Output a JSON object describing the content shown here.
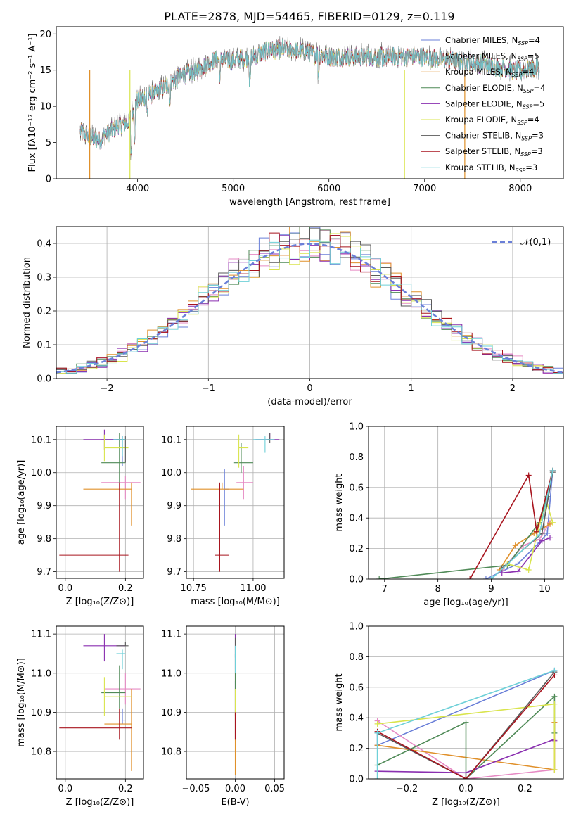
{
  "title": "PLATE=2878, MJD=54465, FIBERID=0129, z=0.119",
  "colors": [
    "#6a7fd8",
    "#e68ac4",
    "#e0902a",
    "#4f8a57",
    "#8a2fb0",
    "#d9e44d",
    "#5a5a5a",
    "#a8141e",
    "#6ed0d8"
  ],
  "chart_data": [
    {
      "id": "spectrum",
      "type": "line",
      "xlabel": "wavelength [Angstrom, rest frame]",
      "ylabel": "Flux [fλ10⁻¹⁷ erg cm⁻² s⁻¹ A⁻¹]",
      "xlim": [
        3150,
        8450
      ],
      "ylim": [
        0,
        21
      ],
      "xticks": [
        4000,
        5000,
        6000,
        7000,
        8000
      ],
      "yticks": [
        0,
        5,
        10,
        15,
        20
      ],
      "grid": false,
      "legend": "top-right",
      "series": [
        {
          "name": "Chabrier MILES, N_SSP=4"
        },
        {
          "name": "Salpeter MILES, N_SSP=5"
        },
        {
          "name": "Kroupa MILES, N_SSP=4"
        },
        {
          "name": "Chabrier ELODIE, N_SSP=4"
        },
        {
          "name": "Salpeter ELODIE, N_SSP=5"
        },
        {
          "name": "Kroupa ELODIE, N_SSP=4"
        },
        {
          "name": "Chabrier STELIB, N_SSP=3"
        },
        {
          "name": "Salpeter STELIB, N_SSP=3"
        },
        {
          "name": "Kroupa STELIB, N_SSP=3"
        }
      ],
      "continuum": {
        "x": [
          3400,
          3500,
          3600,
          3700,
          3800,
          3900,
          4000,
          4100,
          4200,
          4300,
          4400,
          4600,
          4800,
          5000,
          5200,
          5400,
          5600,
          5800,
          6000,
          6200,
          6400,
          6600,
          6800,
          7000,
          7200,
          7400,
          7600,
          7800,
          8000,
          8200
        ],
        "y": [
          6.5,
          5.8,
          5.5,
          6.5,
          7.5,
          8.0,
          11.0,
          11.5,
          12.0,
          13.0,
          14.0,
          15.0,
          16.5,
          16.5,
          17.0,
          18.0,
          18.0,
          17.5,
          17.0,
          17.0,
          17.0,
          17.0,
          17.0,
          17.0,
          16.5,
          16.3,
          16.0,
          15.5,
          15.0,
          15.5
        ]
      }
    },
    {
      "id": "residuals",
      "type": "bar",
      "xlabel": "(data-model)/error",
      "ylabel": "Normed distribution",
      "xlim": [
        -2.5,
        2.5
      ],
      "ylim": [
        0,
        0.45
      ],
      "xticks": [
        -2,
        -1,
        0,
        1,
        2
      ],
      "yticks": [
        0.0,
        0.1,
        0.2,
        0.3,
        0.4
      ],
      "grid": true,
      "legend": "top-right",
      "reference": {
        "name": "𝒩(0,1)",
        "mean": 0,
        "sigma": 1
      },
      "bins": 50
    },
    {
      "id": "age-vs-Z",
      "type": "scatter",
      "xlabel": "Z [log₁₀(Z/Z⊙)]",
      "ylabel": "age  [log₁₀(age/yr)]",
      "xlim": [
        -0.03,
        0.26
      ],
      "ylim": [
        9.68,
        10.14
      ],
      "xticks": [
        0.0,
        0.2
      ],
      "yticks": [
        9.7,
        9.8,
        9.9,
        10.0,
        10.1
      ],
      "grid": true,
      "points": [
        {
          "x": 0.19,
          "xerr": [
            0.07,
            0.01
          ],
          "y": 10.1,
          "yerr": [
            0.08,
            0.01
          ]
        },
        {
          "x": 0.2,
          "xerr": [
            0.08,
            0.05
          ],
          "y": 9.97,
          "yerr": [
            0.05,
            0.02
          ]
        },
        {
          "x": 0.22,
          "xerr": [
            0.16,
            0.0
          ],
          "y": 9.95,
          "yerr": [
            0.11,
            0.02
          ]
        },
        {
          "x": 0.18,
          "xerr": [
            0.06,
            0.02
          ],
          "y": 10.03,
          "yerr": [
            0.06,
            0.09
          ]
        },
        {
          "x": 0.13,
          "xerr": [
            0.07,
            0.06
          ],
          "y": 10.1,
          "yerr": [
            0.03,
            0.03
          ]
        },
        {
          "x": 0.13,
          "xerr": [
            0.0,
            0.08
          ],
          "y": 10.075,
          "yerr": [
            0.04,
            0.04
          ]
        },
        {
          "x": 0.2,
          "xerr": [
            0.03,
            0.0
          ],
          "y": 10.1,
          "yerr": [
            0.07,
            0.01
          ]
        },
        {
          "x": 0.18,
          "xerr": [
            0.2,
            0.03
          ],
          "y": 9.75,
          "yerr": [
            0.05,
            0.22
          ]
        },
        {
          "x": 0.19,
          "xerr": [
            0.03,
            0.01
          ],
          "y": 10.1,
          "yerr": [
            0.05,
            0.01
          ]
        }
      ]
    },
    {
      "id": "age-vs-mass",
      "type": "scatter",
      "xlabel": "mass [log₁₀(M/M⊙)]",
      "ylabel": "",
      "xlim": [
        10.72,
        11.13
      ],
      "ylim": [
        9.68,
        10.14
      ],
      "xticks": [
        10.75,
        11.0
      ],
      "yticks": [
        9.7,
        9.8,
        9.9,
        10.0,
        10.1
      ],
      "grid": true,
      "points": [
        {
          "x": 10.88,
          "xerr": [
            0.0,
            0.02
          ],
          "y": 9.95,
          "yerr": [
            0.11,
            0.06
          ]
        },
        {
          "x": 10.96,
          "xerr": [
            0.03,
            0.04
          ],
          "y": 9.97,
          "yerr": [
            0.05,
            0.05
          ]
        },
        {
          "x": 10.87,
          "xerr": [
            0.13,
            0.09
          ],
          "y": 9.95,
          "yerr": [
            0.0,
            0.02
          ]
        },
        {
          "x": 10.95,
          "xerr": [
            0.03,
            0.05
          ],
          "y": 10.03,
          "yerr": [
            0.03,
            0.06
          ]
        },
        {
          "x": 11.07,
          "xerr": [
            0.06,
            0.04
          ],
          "y": 10.1,
          "yerr": [
            0.0,
            0.02
          ]
        },
        {
          "x": 10.94,
          "xerr": [
            0.0,
            0.04
          ],
          "y": 10.075,
          "yerr": [
            0.06,
            0.04
          ]
        },
        {
          "x": 11.07,
          "xerr": [
            0.01,
            0.0
          ],
          "y": 10.1,
          "yerr": [
            0.01,
            0.02
          ]
        },
        {
          "x": 10.86,
          "xerr": [
            0.02,
            0.04
          ],
          "y": 9.75,
          "yerr": [
            0.05,
            0.22
          ]
        },
        {
          "x": 11.05,
          "xerr": [
            0.05,
            0.04
          ],
          "y": 10.1,
          "yerr": [
            0.04,
            0.01
          ]
        }
      ]
    },
    {
      "id": "weight-vs-age",
      "type": "line",
      "xlabel": "age  [log₁₀(age/yr)]",
      "ylabel": "mass weight",
      "xlim": [
        6.7,
        10.35
      ],
      "ylim": [
        0.0,
        1.0
      ],
      "xticks": [
        7,
        8,
        9,
        10
      ],
      "yticks": [
        0.0,
        0.2,
        0.4,
        0.6,
        0.8,
        1.0
      ],
      "grid": true,
      "series": [
        {
          "x": [
            8.9,
            9.5,
            9.9,
            10.05,
            10.15
          ],
          "y": [
            0.0,
            0.1,
            0.24,
            0.3,
            0.71
          ]
        },
        {
          "x": [
            9.2,
            9.6,
            9.9,
            10.1
          ],
          "y": [
            0.06,
            0.22,
            0.26,
            0.37
          ]
        },
        {
          "x": [
            9.15,
            9.45,
            9.8,
            10.1
          ],
          "y": [
            0.06,
            0.22,
            0.3,
            0.36
          ]
        },
        {
          "x": [
            6.9,
            9.3,
            9.9,
            10.05,
            10.15
          ],
          "y": [
            0.0,
            0.09,
            0.37,
            0.54,
            0.71
          ]
        },
        {
          "x": [
            9.2,
            9.5,
            9.95,
            10.1
          ],
          "y": [
            0.04,
            0.05,
            0.25,
            0.27
          ]
        },
        {
          "x": [
            9.3,
            9.7,
            9.9,
            10.05,
            10.15
          ],
          "y": [
            0.1,
            0.06,
            0.36,
            0.49,
            0.37
          ]
        },
        {
          "x": [
            9.2,
            9.95,
            10.15
          ],
          "y": [
            0.07,
            0.3,
            0.7
          ]
        },
        {
          "x": [
            8.6,
            9.7,
            9.85,
            10.15
          ],
          "y": [
            0.0,
            0.68,
            0.31,
            0.71
          ]
        },
        {
          "x": [
            9.0,
            9.9,
            10.15
          ],
          "y": [
            0.0,
            0.29,
            0.71
          ]
        }
      ]
    },
    {
      "id": "mass-vs-Z",
      "type": "scatter",
      "xlabel": "Z [log₁₀(Z/Z⊙)]",
      "ylabel": "mass [log₁₀(M/M⊙)]",
      "xlim": [
        -0.03,
        0.26
      ],
      "ylim": [
        10.73,
        11.12
      ],
      "xticks": [
        0.0,
        0.2
      ],
      "yticks": [
        10.8,
        10.9,
        11.0,
        11.1
      ],
      "grid": true,
      "points": [
        {
          "x": 0.19,
          "xerr": [
            0.0,
            0.01
          ],
          "y": 10.88,
          "yerr": [
            0.01,
            0.03
          ]
        },
        {
          "x": 0.2,
          "xerr": [
            0.07,
            0.05
          ],
          "y": 10.96,
          "yerr": [
            0.04,
            0.04
          ]
        },
        {
          "x": 0.22,
          "xerr": [
            0.09,
            0.0
          ],
          "y": 10.87,
          "yerr": [
            0.12,
            0.09
          ]
        },
        {
          "x": 0.18,
          "xerr": [
            0.06,
            0.02
          ],
          "y": 10.95,
          "yerr": [
            0.04,
            0.07
          ]
        },
        {
          "x": 0.13,
          "xerr": [
            0.07,
            0.07
          ],
          "y": 11.07,
          "yerr": [
            0.04,
            0.03
          ]
        },
        {
          "x": 0.13,
          "xerr": [
            0.0,
            0.09
          ],
          "y": 10.94,
          "yerr": [
            0.05,
            0.05
          ]
        },
        {
          "x": 0.2,
          "xerr": [
            0.03,
            0.01
          ],
          "y": 11.07,
          "yerr": [
            0.0,
            0.01
          ]
        },
        {
          "x": 0.18,
          "xerr": [
            0.2,
            0.04
          ],
          "y": 10.86,
          "yerr": [
            0.03,
            0.05
          ]
        },
        {
          "x": 0.19,
          "xerr": [
            0.02,
            0.01
          ],
          "y": 11.05,
          "yerr": [
            0.04,
            0.01
          ]
        }
      ]
    },
    {
      "id": "mass-vs-EBV",
      "type": "scatter",
      "xlabel": "E(B-V)",
      "ylabel": "",
      "xlim": [
        -0.062,
        0.062
      ],
      "ylim": [
        10.73,
        11.12
      ],
      "xticks": [
        -0.05,
        0.0,
        0.05
      ],
      "yticks": [
        10.8,
        10.9,
        11.0,
        11.1
      ],
      "grid": true,
      "points": [
        {
          "x": 0.0,
          "y": 10.88,
          "yerr": [
            0.05,
            0.1
          ]
        },
        {
          "x": 0.0,
          "y": 10.96,
          "yerr": [
            0.06,
            0.05
          ]
        },
        {
          "x": 0.0,
          "y": 10.87,
          "yerr": [
            0.13,
            0.03
          ]
        },
        {
          "x": 0.0,
          "y": 10.95,
          "yerr": [
            0.06,
            0.1
          ]
        },
        {
          "x": 0.0,
          "y": 11.07,
          "yerr": [
            0.06,
            0.03
          ]
        },
        {
          "x": 0.0,
          "y": 10.94,
          "yerr": [
            0.06,
            0.02
          ]
        },
        {
          "x": 0.0,
          "y": 11.07,
          "yerr": [
            0.03,
            0.02
          ]
        },
        {
          "x": 0.0,
          "y": 10.86,
          "yerr": [
            0.03,
            0.04
          ]
        },
        {
          "x": 0.0,
          "y": 11.05,
          "yerr": [
            0.05,
            0.02
          ]
        }
      ]
    },
    {
      "id": "weight-vs-Z",
      "type": "line",
      "xlabel": "Z [log₁₀(Z/Z⊙)]",
      "ylabel": "mass weight",
      "xlim": [
        -0.33,
        0.33
      ],
      "ylim": [
        0.0,
        1.0
      ],
      "xticks": [
        -0.2,
        0.0,
        0.2
      ],
      "yticks": [
        0.0,
        0.2,
        0.4,
        0.6,
        0.8,
        1.0
      ],
      "grid": true,
      "series": [
        {
          "x": [
            -0.3,
            -0.3,
            0.3
          ],
          "y": [
            0.3,
            0.22,
            0.71
          ]
        },
        {
          "x": [
            -0.3,
            0.0,
            0.3,
            0.3
          ],
          "y": [
            0.38,
            0.0,
            0.06,
            0.37
          ]
        },
        {
          "x": [
            -0.3,
            0.3,
            0.3
          ],
          "y": [
            0.22,
            0.06,
            0.37
          ]
        },
        {
          "x": [
            -0.3,
            0.0,
            0.0,
            0.3,
            0.3
          ],
          "y": [
            0.09,
            0.37,
            0.0,
            0.54,
            0.3
          ]
        },
        {
          "x": [
            -0.3,
            0.0,
            0.3,
            0.3
          ],
          "y": [
            0.05,
            0.04,
            0.26,
            0.25
          ]
        },
        {
          "x": [
            -0.3,
            0.3,
            0.3
          ],
          "y": [
            0.36,
            0.49,
            0.06
          ]
        },
        {
          "x": [
            -0.3,
            0.0,
            0.3
          ],
          "y": [
            0.3,
            0.0,
            0.7
          ]
        },
        {
          "x": [
            -0.3,
            0.0,
            0.3
          ],
          "y": [
            0.31,
            0.0,
            0.68
          ]
        },
        {
          "x": [
            -0.3,
            -0.3,
            0.3
          ],
          "y": [
            0.0,
            0.3,
            0.71
          ]
        }
      ]
    }
  ]
}
